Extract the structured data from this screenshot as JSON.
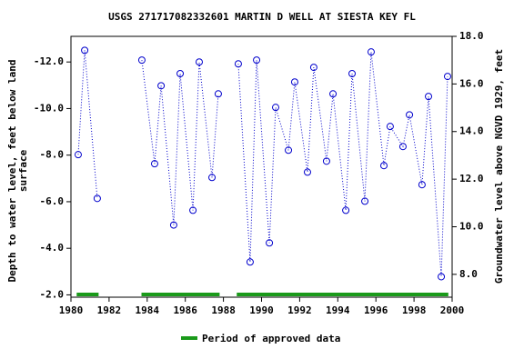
{
  "chart_data": {
    "type": "line",
    "title": "USGS 271717082332601 MARTIN D WELL AT SIESTA KEY FL",
    "ylabel_lines": [
      "Depth to water level, feet below land",
      "surface"
    ],
    "y2label": "Groundwater level above NGVD 1929, feet",
    "xlim": [
      1980,
      2000
    ],
    "xticks": [
      1980,
      1982,
      1984,
      1986,
      1988,
      1990,
      1992,
      1994,
      1996,
      1998,
      2000
    ],
    "ylim": [
      -1.9,
      -13.1
    ],
    "yticks": [
      {
        "value": -2,
        "label": "-2.0"
      },
      {
        "value": -4,
        "label": "-4.0"
      },
      {
        "value": -6,
        "label": "-6.0"
      },
      {
        "value": -8,
        "label": "-8.0"
      },
      {
        "value": -10,
        "label": "-10.0"
      },
      {
        "value": -12,
        "label": "-12.0"
      }
    ],
    "y2lim": [
      7.04,
      18
    ],
    "y2ticks": [
      {
        "value": 8,
        "label": "8.0"
      },
      {
        "value": 10,
        "label": "10.0"
      },
      {
        "value": 12,
        "label": "12.0"
      },
      {
        "value": 14,
        "label": "14.0"
      },
      {
        "value": 16,
        "label": "16.0"
      },
      {
        "value": 18,
        "label": "18.0"
      }
    ],
    "series": [
      {
        "name": "Depth to water level",
        "color": "#0000cc",
        "x": [
          1980.38,
          1980.72,
          1981.38,
          null,
          1983.72,
          1984.39,
          1984.73,
          1985.39,
          1985.73,
          1986.4,
          1986.73,
          1987.4,
          1987.73,
          null,
          1988.78,
          1989.4,
          1989.74,
          1990.41,
          1990.74,
          1991.41,
          1991.74,
          1992.41,
          1992.74,
          1993.41,
          1993.75,
          1994.42,
          1994.75,
          1995.42,
          1995.75,
          1996.42,
          1996.75,
          1997.42,
          1997.76,
          1998.42,
          1998.76,
          1999.43,
          1999.76
        ],
        "values": [
          -8.02,
          -12.5,
          -6.14,
          null,
          -12.08,
          -7.63,
          -10.98,
          -5.0,
          -11.5,
          -5.63,
          -12.0,
          -7.04,
          -10.63,
          null,
          -11.92,
          -3.41,
          -12.08,
          -4.23,
          -10.05,
          -8.21,
          -11.14,
          -7.27,
          -11.77,
          -7.74,
          -10.63,
          -5.63,
          -11.5,
          -6.02,
          -12.43,
          -7.55,
          -9.23,
          -8.37,
          -9.73,
          -6.73,
          -10.52,
          -2.78,
          -11.38
        ]
      }
    ],
    "approved_periods": {
      "name": "Period of approved data",
      "color": "#1a9a1a",
      "ranges": [
        [
          1980.3,
          1981.45
        ],
        [
          1983.7,
          1987.8
        ],
        [
          1988.7,
          1999.8
        ]
      ]
    }
  }
}
